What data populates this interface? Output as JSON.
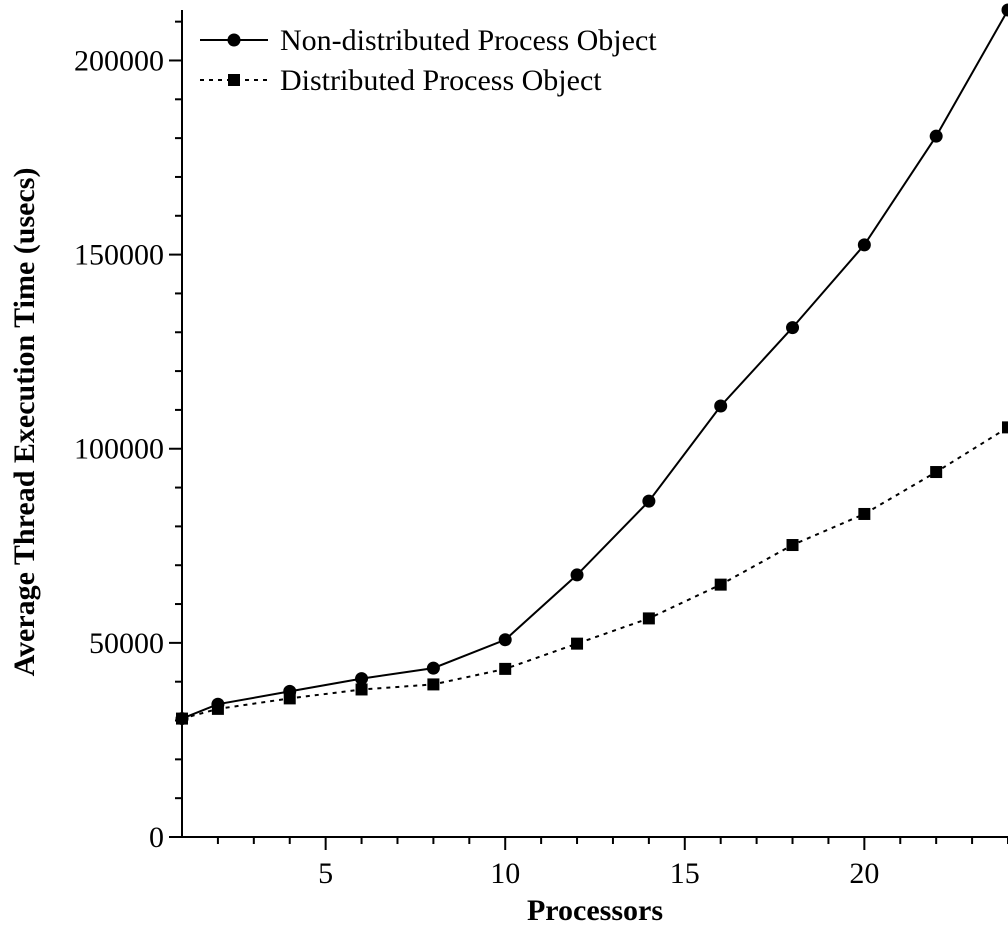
{
  "chart_data": {
    "type": "line",
    "title": "",
    "xlabel": "Processors",
    "ylabel": "Average Thread Execution Time (usecs)",
    "xlim": [
      1,
      24
    ],
    "ylim": [
      0,
      213000
    ],
    "x_major_ticks": [
      5,
      10,
      15,
      20
    ],
    "x_tick_labels": [
      "5",
      "10",
      "15",
      "20"
    ],
    "y_major_ticks": [
      0,
      50000,
      100000,
      150000,
      200000
    ],
    "y_tick_labels": [
      "0",
      "50000",
      "100000",
      "150000",
      "200000"
    ],
    "grid": false,
    "legend_position": "top-left",
    "series": [
      {
        "name": "Non-distributed Process Object",
        "marker": "circle",
        "line_style": "solid",
        "color": "#000000",
        "x": [
          1,
          2,
          4,
          6,
          8,
          10,
          12,
          14,
          16,
          18,
          20,
          22,
          24
        ],
        "y": [
          30500,
          34200,
          37500,
          40800,
          43500,
          50800,
          67500,
          86500,
          111000,
          131200,
          152500,
          180500,
          213000
        ]
      },
      {
        "name": "Distributed Process Object",
        "marker": "square",
        "line_style": "dotted",
        "color": "#000000",
        "x": [
          1,
          2,
          4,
          6,
          8,
          10,
          12,
          14,
          16,
          18,
          20,
          22,
          24
        ],
        "y": [
          30500,
          33000,
          35700,
          38000,
          39300,
          43300,
          49800,
          56300,
          65000,
          75200,
          83200,
          94000,
          105500
        ]
      }
    ]
  }
}
